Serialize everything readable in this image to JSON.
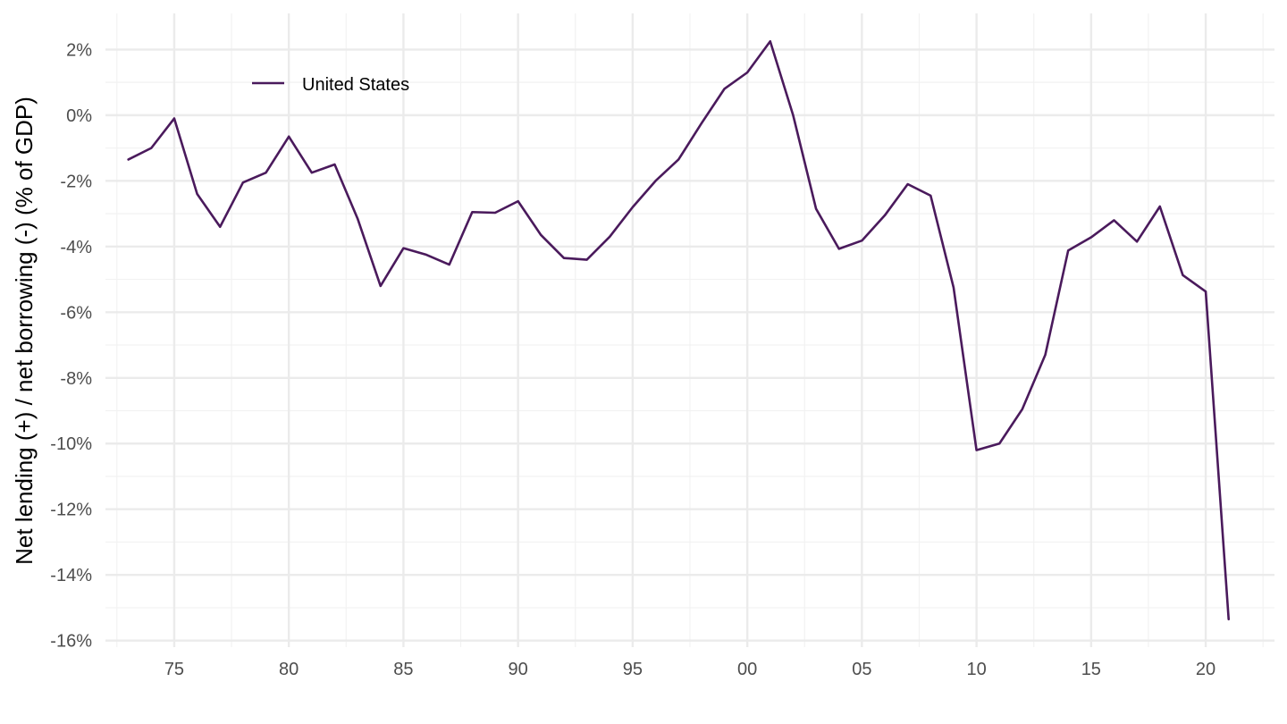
{
  "chart_data": {
    "type": "line",
    "title": "",
    "xlabel": "",
    "ylabel": "Net lending (+) / net borrowing (-) (% of GDP)",
    "xlim": [
      1972,
      2023
    ],
    "ylim": [
      -16.2,
      3.1
    ],
    "x_ticks": [
      1975,
      1980,
      1985,
      1990,
      1995,
      2000,
      2005,
      2010,
      2015,
      2020
    ],
    "x_tick_labels": [
      "75",
      "80",
      "85",
      "90",
      "95",
      "00",
      "05",
      "10",
      "15",
      "20"
    ],
    "y_ticks": [
      2,
      0,
      -2,
      -4,
      -6,
      -8,
      -10,
      -12,
      -14,
      -16
    ],
    "y_tick_labels": [
      "2%",
      "0%",
      "-2%",
      "-4%",
      "-6%",
      "-8%",
      "-10%",
      "-12%",
      "-14%",
      "-16%"
    ],
    "grid": true,
    "legend_position": "top-left",
    "series": [
      {
        "name": "United States",
        "color": "#4a1a5c",
        "x": [
          1973,
          1974,
          1975,
          1976,
          1977,
          1978,
          1979,
          1980,
          1981,
          1982,
          1983,
          1984,
          1985,
          1986,
          1987,
          1988,
          1989,
          1990,
          1991,
          1992,
          1993,
          1994,
          1995,
          1996,
          1997,
          1998,
          1999,
          2000,
          2001,
          2002,
          2003,
          2004,
          2005,
          2006,
          2007,
          2008,
          2009,
          2010,
          2011,
          2012,
          2013,
          2014,
          2015,
          2016,
          2017,
          2018,
          2019,
          2020,
          2021
        ],
        "y": [
          -1.35,
          -1.0,
          -0.1,
          -2.4,
          -3.4,
          -2.05,
          -1.75,
          -0.65,
          -1.75,
          -1.5,
          -3.15,
          -5.2,
          -4.05,
          -4.25,
          -4.55,
          -2.95,
          -2.97,
          -2.62,
          -3.65,
          -4.35,
          -4.4,
          -3.7,
          -2.8,
          -2.0,
          -1.35,
          -0.25,
          0.8,
          1.3,
          2.25,
          0.0,
          -2.85,
          -4.07,
          -3.82,
          -3.05,
          -2.1,
          -2.45,
          -5.25,
          -10.2,
          -10.0,
          -8.95,
          -7.3,
          -4.12,
          -3.72,
          -3.2,
          -3.85,
          -2.78,
          -4.87,
          -5.37,
          -15.35
        ]
      }
    ]
  }
}
